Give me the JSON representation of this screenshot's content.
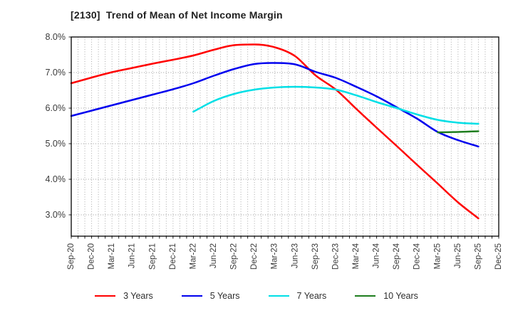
{
  "chart_data": {
    "type": "line",
    "title": "[2130]  Trend of Mean of Net Income Margin",
    "xlabel": "",
    "ylabel": "",
    "ylim": [
      2.4,
      8.0
    ],
    "grid": true,
    "legend_position": "bottom",
    "yticks": [
      {
        "value": 8.0,
        "label": "8.0%"
      },
      {
        "value": 7.0,
        "label": "7.0%"
      },
      {
        "value": 6.0,
        "label": "6.0%"
      },
      {
        "value": 5.0,
        "label": "5.0%"
      },
      {
        "value": 4.0,
        "label": "4.0%"
      },
      {
        "value": 3.0,
        "label": "3.0%"
      }
    ],
    "categories": [
      "Sep-20",
      "Dec-20",
      "Mar-21",
      "Jun-21",
      "Sep-21",
      "Dec-21",
      "Mar-22",
      "Jun-22",
      "Sep-22",
      "Dec-22",
      "Mar-23",
      "Jun-23",
      "Sep-23",
      "Dec-23",
      "Mar-24",
      "Jun-24",
      "Sep-24",
      "Dec-24",
      "Mar-25",
      "Jun-25",
      "Sep-25",
      "Dec-25"
    ],
    "series": [
      {
        "name": "3 Years",
        "color": "#ff0000",
        "values": [
          6.7,
          6.86,
          7.01,
          7.13,
          7.25,
          7.36,
          7.48,
          7.64,
          7.77,
          7.79,
          7.71,
          7.46,
          6.92,
          6.52,
          5.98,
          5.45,
          4.93,
          4.4,
          3.88,
          3.35,
          2.9,
          null
        ]
      },
      {
        "name": "5 Years",
        "color": "#0000ee",
        "values": [
          5.78,
          5.93,
          6.08,
          6.23,
          6.38,
          6.53,
          6.7,
          6.91,
          7.1,
          7.24,
          7.27,
          7.23,
          7.02,
          6.85,
          6.6,
          6.33,
          6.02,
          5.7,
          5.33,
          5.1,
          4.92,
          null
        ]
      },
      {
        "name": "7 Years",
        "color": "#00dfe6",
        "values": [
          null,
          null,
          null,
          null,
          null,
          null,
          5.9,
          6.2,
          6.4,
          6.52,
          6.58,
          6.6,
          6.58,
          6.52,
          6.36,
          6.17,
          6.0,
          5.82,
          5.67,
          5.59,
          5.56,
          null
        ]
      },
      {
        "name": "10 Years",
        "color": "#1e7d1e",
        "values": [
          null,
          null,
          null,
          null,
          null,
          null,
          null,
          null,
          null,
          null,
          null,
          null,
          null,
          null,
          null,
          null,
          null,
          null,
          5.32,
          5.33,
          5.35,
          null
        ]
      }
    ]
  }
}
